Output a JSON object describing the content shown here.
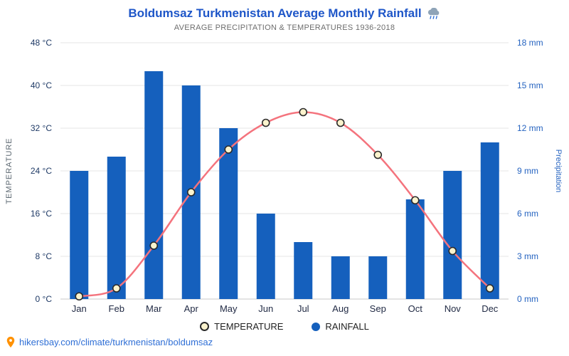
{
  "header": {
    "title": "Boldumsaz Turkmenistan Average Monthly Rainfall",
    "subtitle": "AVERAGE PRECIPITATION & TEMPERATURES 1936-2018"
  },
  "chart_data": {
    "type": "bar",
    "title": "Boldumsaz Turkmenistan Average Monthly Rainfall",
    "subtitle": "AVERAGE PRECIPITATION & TEMPERATURES 1936-2018",
    "categories": [
      "Jan",
      "Feb",
      "Mar",
      "Apr",
      "May",
      "Jun",
      "Jul",
      "Aug",
      "Sep",
      "Oct",
      "Nov",
      "Dec"
    ],
    "series": [
      {
        "name": "RAINFALL",
        "type": "bar",
        "unit": "mm",
        "axis": "right",
        "values": [
          9,
          10,
          16,
          15,
          12,
          6,
          4,
          3,
          3,
          7,
          9,
          11
        ]
      },
      {
        "name": "TEMPERATURE",
        "type": "line",
        "unit": "°C",
        "axis": "left",
        "values": [
          0.5,
          2,
          10,
          20,
          28,
          33,
          35,
          33,
          27,
          18.5,
          9,
          2
        ]
      }
    ],
    "left_axis": {
      "label": "TEMPERATURE",
      "unit": "°C",
      "min": 0,
      "max": 48,
      "ticks": [
        0,
        8,
        16,
        24,
        32,
        40,
        48
      ]
    },
    "right_axis": {
      "label": "Precipitation",
      "unit": "mm",
      "min": 0,
      "max": 18,
      "ticks": [
        0,
        3,
        6,
        9,
        12,
        15,
        18
      ]
    },
    "grid": true,
    "legend_position": "bottom"
  },
  "legend": {
    "temperature_label": "TEMPERATURE",
    "rainfall_label": "RAINFALL"
  },
  "footer": {
    "link_text": "hikersbay.com/climate/turkmenistan/boldumsaz"
  },
  "icons": {
    "title_icon": "rain-cloud-icon",
    "footer_icon": "location-pin-icon"
  },
  "colors": {
    "title": "#1e56c8",
    "subtitle": "#6d6d6d",
    "bar": "#1560bd",
    "line": "#f4737d",
    "marker_fill": "#fbf3cd",
    "marker_stroke": "#2a2a2a",
    "grid": "#e4e4e4",
    "axis_line": "#c9c9c9",
    "left_tick": "#1f3a66",
    "right_tick": "#2563c0",
    "month": "#222b45",
    "left_axis_title": "#5b6770",
    "link": "#2f6fd6",
    "pin": "#ff9100"
  }
}
